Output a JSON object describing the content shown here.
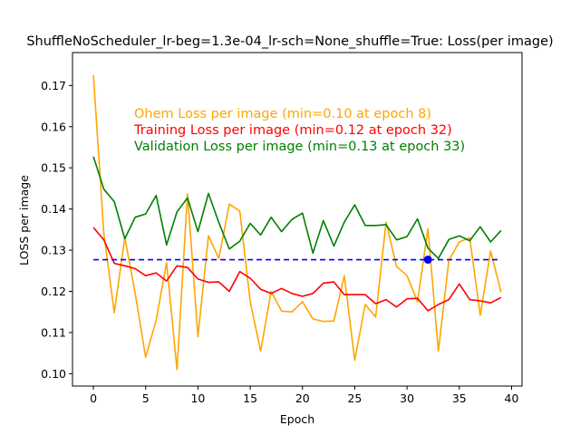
{
  "chart_data": {
    "type": "line",
    "title": "ShuffleNoScheduler_lr-beg=1.3e-04_lr-sch=None_shuffle=True:  Loss(per image)",
    "xlabel": "Epoch",
    "ylabel": "LOSS per image",
    "xlim": [
      -2,
      41
    ],
    "ylim": [
      0.097,
      0.178
    ],
    "x_ticks": [
      0,
      5,
      10,
      15,
      20,
      25,
      30,
      35,
      40
    ],
    "y_ticks": [
      0.1,
      0.11,
      0.12,
      0.13,
      0.14,
      0.15,
      0.16,
      0.17
    ],
    "x": [
      0,
      1,
      2,
      3,
      4,
      5,
      6,
      7,
      8,
      9,
      10,
      11,
      12,
      13,
      14,
      15,
      16,
      17,
      18,
      19,
      20,
      21,
      22,
      23,
      24,
      25,
      26,
      27,
      28,
      29,
      30,
      31,
      32,
      33,
      34,
      35,
      36,
      37,
      38,
      39
    ],
    "series": [
      {
        "name": "Ohem Loss per image (min=0.10 at epoch 8)",
        "color": "#ffa500",
        "values": [
          0.1725,
          0.134,
          0.1148,
          0.1331,
          0.1195,
          0.104,
          0.113,
          0.127,
          0.101,
          0.1437,
          0.109,
          0.1335,
          0.128,
          0.1412,
          0.1395,
          0.1175,
          0.1055,
          0.12,
          0.1152,
          0.115,
          0.1175,
          0.1133,
          0.1127,
          0.1128,
          0.1238,
          0.1033,
          0.1168,
          0.1138,
          0.1368,
          0.126,
          0.1238,
          0.1175,
          0.1352,
          0.1055,
          0.1275,
          0.132,
          0.133,
          0.1142,
          0.1298,
          0.1198
        ]
      },
      {
        "name": "Training Loss per image (min=0.12 at epoch 32)",
        "color": "#ff0000",
        "values": [
          0.1355,
          0.1325,
          0.1268,
          0.1262,
          0.1255,
          0.1238,
          0.1245,
          0.1225,
          0.1262,
          0.1258,
          0.123,
          0.1222,
          0.1223,
          0.12,
          0.1248,
          0.1232,
          0.1205,
          0.1195,
          0.1207,
          0.1195,
          0.1188,
          0.1195,
          0.122,
          0.1223,
          0.1192,
          0.1192,
          0.1192,
          0.117,
          0.118,
          0.1162,
          0.1182,
          0.1183,
          0.1153,
          0.1168,
          0.118,
          0.1218,
          0.118,
          0.1177,
          0.1172,
          0.1185
        ]
      },
      {
        "name": "Validation Loss per image (min=0.13 at epoch 33)",
        "color": "#008000",
        "values": [
          0.1527,
          0.1448,
          0.1418,
          0.1328,
          0.138,
          0.1388,
          0.1433,
          0.1313,
          0.1393,
          0.1427,
          0.1345,
          0.1438,
          0.1367,
          0.1303,
          0.1322,
          0.1365,
          0.1337,
          0.138,
          0.1345,
          0.1375,
          0.139,
          0.1293,
          0.1372,
          0.131,
          0.1368,
          0.141,
          0.136,
          0.136,
          0.1362,
          0.1325,
          0.1333,
          0.1376,
          0.1305,
          0.128,
          0.1326,
          0.1335,
          0.1323,
          0.1357,
          0.132,
          0.1348
        ]
      }
    ],
    "reference_line": {
      "y": 0.1277,
      "color": "#0000ff",
      "style": "dashed"
    },
    "marker": {
      "x": 32,
      "y": 0.1277,
      "color": "#0000ff"
    },
    "legend_placement": "upper-center"
  }
}
